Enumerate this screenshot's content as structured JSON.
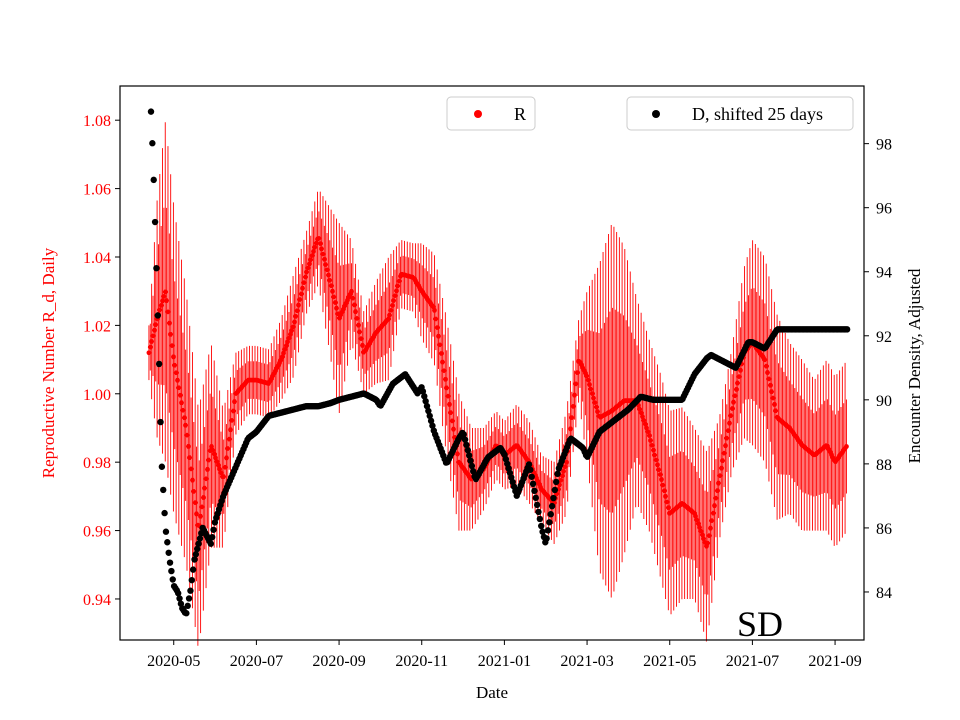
{
  "chart_data": {
    "type": "line",
    "panel_label": "SD",
    "xlabel": "Date",
    "x_ticks": [
      "2020-05",
      "2020-07",
      "2020-09",
      "2020-11",
      "2021-01",
      "2021-03",
      "2021-05",
      "2021-07",
      "2021-09"
    ],
    "x_tick_month_index": [
      0,
      2,
      4,
      6,
      8,
      10,
      12,
      14,
      16
    ],
    "xlim_month_index": [
      -1.3,
      16.7
    ],
    "left_axis": {
      "label": "Reproductive Number R_d, Daily",
      "color": "#ff0000",
      "ylim": [
        0.928,
        1.09
      ],
      "ticks": [
        "0.94",
        "0.96",
        "0.98",
        "1.00",
        "1.02",
        "1.04",
        "1.06",
        "1.08"
      ],
      "tick_values": [
        0.94,
        0.96,
        0.98,
        1.0,
        1.02,
        1.04,
        1.06,
        1.08
      ]
    },
    "right_axis": {
      "label": "Encounter Density, Adjusted",
      "color": "#000000",
      "ylim": [
        82.5,
        99.8
      ],
      "ticks": [
        "84",
        "86",
        "88",
        "90",
        "92",
        "94",
        "96",
        "98"
      ],
      "tick_values": [
        84,
        86,
        88,
        90,
        92,
        94,
        96,
        98
      ]
    },
    "series": [
      {
        "name": "R",
        "axis": "left",
        "color": "#ff0000",
        "style": "points with daily error bars",
        "x_month_index": [
          -0.6,
          -0.4,
          -0.2,
          0.0,
          0.3,
          0.6,
          0.9,
          1.2,
          1.5,
          1.8,
          2.0,
          2.3,
          2.6,
          2.9,
          3.2,
          3.5,
          3.8,
          4.0,
          4.3,
          4.6,
          4.9,
          5.2,
          5.5,
          5.8,
          6.0,
          6.3,
          6.6,
          6.9,
          7.2,
          7.5,
          7.8,
          8.0,
          8.3,
          8.6,
          8.9,
          9.2,
          9.5,
          9.8,
          10.0,
          10.3,
          10.6,
          10.9,
          11.2,
          11.5,
          11.8,
          12.0,
          12.3,
          12.6,
          12.9,
          13.2,
          13.5,
          13.8,
          14.0,
          14.3,
          14.6,
          14.9,
          15.2,
          15.5,
          15.8,
          16.0,
          16.3
        ],
        "values": [
          1.012,
          1.022,
          1.03,
          1.01,
          0.99,
          0.96,
          0.985,
          0.975,
          1.0,
          1.004,
          1.004,
          1.003,
          1.01,
          1.02,
          1.035,
          1.046,
          1.032,
          1.022,
          1.03,
          1.012,
          1.018,
          1.022,
          1.035,
          1.034,
          1.03,
          1.025,
          1.002,
          0.98,
          0.975,
          0.978,
          0.985,
          0.982,
          0.985,
          0.98,
          0.972,
          0.968,
          0.98,
          1.01,
          1.005,
          0.993,
          0.995,
          0.998,
          0.998,
          0.988,
          0.975,
          0.965,
          0.968,
          0.965,
          0.955,
          0.975,
          0.995,
          1.012,
          1.015,
          1.01,
          0.993,
          0.99,
          0.985,
          0.982,
          0.985,
          0.98,
          0.985
        ],
        "error_halfwidth": [
          0.008,
          0.035,
          0.05,
          0.045,
          0.04,
          0.035,
          0.03,
          0.02,
          0.012,
          0.01,
          0.01,
          0.01,
          0.012,
          0.015,
          0.012,
          0.014,
          0.022,
          0.028,
          0.015,
          0.012,
          0.015,
          0.018,
          0.01,
          0.01,
          0.014,
          0.016,
          0.02,
          0.02,
          0.015,
          0.012,
          0.01,
          0.01,
          0.012,
          0.012,
          0.01,
          0.012,
          0.015,
          0.012,
          0.025,
          0.045,
          0.055,
          0.045,
          0.03,
          0.028,
          0.03,
          0.03,
          0.028,
          0.025,
          0.028,
          0.018,
          0.018,
          0.025,
          0.03,
          0.03,
          0.03,
          0.025,
          0.025,
          0.022,
          0.025,
          0.025,
          0.025
        ]
      },
      {
        "name": "D, shifted 25 days",
        "axis": "right",
        "color": "#000000",
        "style": "points",
        "x_month_index": [
          -0.55,
          -0.5,
          -0.45,
          -0.4,
          -0.35,
          -0.3,
          -0.2,
          -0.1,
          0.0,
          0.1,
          0.2,
          0.3,
          0.4,
          0.5,
          0.7,
          0.9,
          1.0,
          1.2,
          1.4,
          1.6,
          1.8,
          2.0,
          2.3,
          2.6,
          2.9,
          3.2,
          3.5,
          3.8,
          4.0,
          4.3,
          4.6,
          4.9,
          5.0,
          5.3,
          5.6,
          5.9,
          6.0,
          6.3,
          6.6,
          6.9,
          7.0,
          7.3,
          7.6,
          7.9,
          8.0,
          8.3,
          8.6,
          8.9,
          9.0,
          9.3,
          9.6,
          9.9,
          10.0,
          10.3,
          10.6,
          10.9,
          11.0,
          11.3,
          11.6,
          11.9,
          12.0,
          12.3,
          12.6,
          12.9,
          13.0,
          13.3,
          13.6,
          13.9,
          14.0,
          14.3,
          14.6,
          14.9,
          15.0,
          15.3,
          15.6,
          15.9,
          16.0,
          16.3
        ],
        "values": [
          99.0,
          97.5,
          95.5,
          93.3,
          91.0,
          88.2,
          86.0,
          85.0,
          84.2,
          84.0,
          83.5,
          83.3,
          84.0,
          85.0,
          86.0,
          85.5,
          86.2,
          87.0,
          87.6,
          88.2,
          88.8,
          89.0,
          89.5,
          89.6,
          89.7,
          89.8,
          89.8,
          89.9,
          90.0,
          90.1,
          90.2,
          90.0,
          89.8,
          90.5,
          90.8,
          90.2,
          90.4,
          89.0,
          88.0,
          88.8,
          89.0,
          87.5,
          88.2,
          88.5,
          88.3,
          87.0,
          88.0,
          86.0,
          85.5,
          87.8,
          88.8,
          88.5,
          88.2,
          89.0,
          89.3,
          89.6,
          89.7,
          90.1,
          90.0,
          90.0,
          90.0,
          90.0,
          90.8,
          91.3,
          91.4,
          91.2,
          91.0,
          91.8,
          91.8,
          91.6,
          92.2,
          92.2,
          92.2,
          92.2,
          92.2,
          92.2,
          92.2,
          92.2
        ]
      }
    ]
  },
  "legends": {
    "left": {
      "label": "R",
      "color": "#ff0000"
    },
    "right": {
      "label": "D, shifted 25 days",
      "color": "#000000"
    }
  }
}
